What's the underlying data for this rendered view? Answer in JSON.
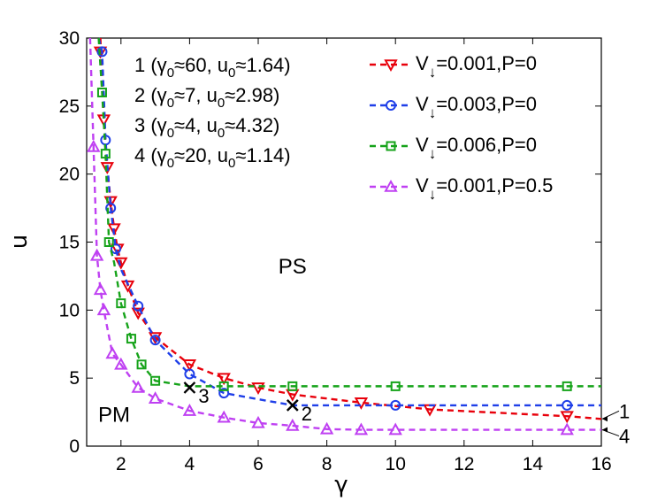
{
  "chart_data": {
    "type": "line",
    "xlabel": "γ",
    "ylabel": "u",
    "xlim": [
      1,
      16
    ],
    "ylim": [
      0,
      30
    ],
    "xticks": [
      2,
      4,
      6,
      8,
      10,
      12,
      14,
      16
    ],
    "yticks": [
      0,
      5,
      10,
      15,
      20,
      25,
      30
    ],
    "grid": false,
    "legend_position": "top-right",
    "series": [
      {
        "name": "V↓=0.001,P=0",
        "legend_main": "V",
        "legend_sub": "↓",
        "legend_rest": "=0.001,P=0",
        "color": "#e8000b",
        "marker": "triangle-down",
        "end_label": "1",
        "curve_x": [
          1.4,
          1.5,
          1.6,
          1.7,
          1.8,
          1.9,
          2.0,
          2.2,
          2.5,
          3.0,
          4.0,
          5.0,
          6.0,
          7.0,
          9.0,
          11.0,
          15.0,
          16.0
        ],
        "curve_y": [
          30,
          24,
          20.5,
          18,
          16,
          14.5,
          13.5,
          11.8,
          9.8,
          8.0,
          6.0,
          5.0,
          4.3,
          3.8,
          3.2,
          2.7,
          2.2,
          2.0
        ],
        "marker_x": [
          1.4,
          1.5,
          1.6,
          1.7,
          1.8,
          1.9,
          2.0,
          2.2,
          2.5,
          3.0,
          4.0,
          5.0,
          6.0,
          7.0,
          9.0,
          11.0,
          15.0
        ],
        "marker_y": [
          29,
          24,
          20.5,
          18,
          16,
          14.5,
          13.5,
          11.8,
          9.8,
          8.0,
          6.0,
          5.0,
          4.3,
          3.8,
          3.2,
          2.7,
          2.2
        ]
      },
      {
        "name": "V↓=0.003,P=0",
        "legend_main": "V",
        "legend_sub": "↓",
        "legend_rest": "=0.003,P=0",
        "color": "#1f3fe8",
        "marker": "circle",
        "end_label": "",
        "curve_x": [
          1.35,
          1.45,
          1.55,
          1.7,
          1.85,
          2.0,
          2.5,
          3.0,
          4.0,
          5.0,
          7.0,
          10.0,
          15.0,
          16.0
        ],
        "curve_y": [
          30,
          29,
          22.5,
          17.5,
          14.5,
          13.0,
          10.3,
          7.8,
          5.3,
          3.9,
          3.0,
          3.0,
          3.0,
          3.0
        ],
        "marker_x": [
          1.45,
          1.55,
          1.7,
          1.85,
          2.5,
          3.0,
          4.0,
          5.0,
          10.0,
          15.0
        ],
        "marker_y": [
          29,
          22.5,
          17.5,
          14.5,
          10.3,
          7.8,
          5.3,
          3.9,
          3.0,
          3.0
        ]
      },
      {
        "name": "V↓=0.006,P=0",
        "legend_main": "V",
        "legend_sub": "↓",
        "legend_rest": "=0.006,P=0",
        "color": "#16a31a",
        "marker": "square",
        "end_label": "",
        "curve_x": [
          1.35,
          1.45,
          1.55,
          1.65,
          1.8,
          2.0,
          2.3,
          2.6,
          3.0,
          4.0,
          5.0,
          7.0,
          10.0,
          15.0,
          16.0
        ],
        "curve_y": [
          30,
          26,
          21.5,
          15,
          13.5,
          10.5,
          7.9,
          6.0,
          4.8,
          4.4,
          4.4,
          4.4,
          4.4,
          4.4,
          4.4
        ],
        "marker_x": [
          1.45,
          1.55,
          1.65,
          2.0,
          2.3,
          2.6,
          3.0,
          5.0,
          7.0,
          10.0,
          15.0
        ],
        "marker_y": [
          26,
          21.5,
          15,
          10.5,
          7.9,
          6.0,
          4.8,
          4.4,
          4.4,
          4.4,
          4.4
        ]
      },
      {
        "name": "V↓=0.001,P=0.5",
        "legend_main": "V",
        "legend_sub": "↓",
        "legend_rest": "=0.001,P=0.5",
        "color": "#bf40f2",
        "marker": "triangle-up",
        "end_label": "4",
        "curve_x": [
          1.1,
          1.2,
          1.3,
          1.4,
          1.5,
          1.75,
          2.0,
          2.5,
          3.0,
          4.0,
          5.0,
          6.0,
          7.0,
          8.0,
          9.0,
          10.0,
          15.0,
          16.0
        ],
        "curve_y": [
          30,
          22,
          14,
          11.5,
          10,
          6.8,
          6.0,
          4.3,
          3.5,
          2.6,
          2.1,
          1.7,
          1.5,
          1.25,
          1.2,
          1.2,
          1.2,
          1.2
        ],
        "marker_x": [
          1.2,
          1.3,
          1.4,
          1.5,
          1.75,
          2.0,
          2.5,
          3.0,
          4.0,
          5.0,
          6.0,
          7.0,
          8.0,
          9.0,
          10.0,
          15.0
        ],
        "marker_y": [
          22,
          14,
          11.5,
          10,
          6.8,
          6.0,
          4.3,
          3.5,
          2.6,
          2.1,
          1.7,
          1.5,
          1.25,
          1.2,
          1.2,
          1.2
        ]
      }
    ],
    "cross_markers": [
      {
        "x": 4,
        "y": 4.3,
        "label": "3"
      },
      {
        "x": 7,
        "y": 3.0,
        "label": "2"
      }
    ],
    "regions": [
      {
        "text": "PS",
        "x": 7.0,
        "y": 12.7
      },
      {
        "text": "PM",
        "x": 1.8,
        "y": 1.8
      }
    ],
    "annotations": [
      {
        "id": "1",
        "gamma": "60",
        "u": "1.64"
      },
      {
        "id": "2",
        "gamma": "7",
        "u": "2.98"
      },
      {
        "id": "3",
        "gamma": "4",
        "u": "4.32"
      },
      {
        "id": "4",
        "gamma": "20",
        "u": "1.14"
      }
    ],
    "annotation_text": {
      "open": "(γ",
      "sub": "0",
      "approx_gamma": "≈",
      "sep": ", u",
      "approx_u": "≈",
      "close": ")"
    }
  }
}
